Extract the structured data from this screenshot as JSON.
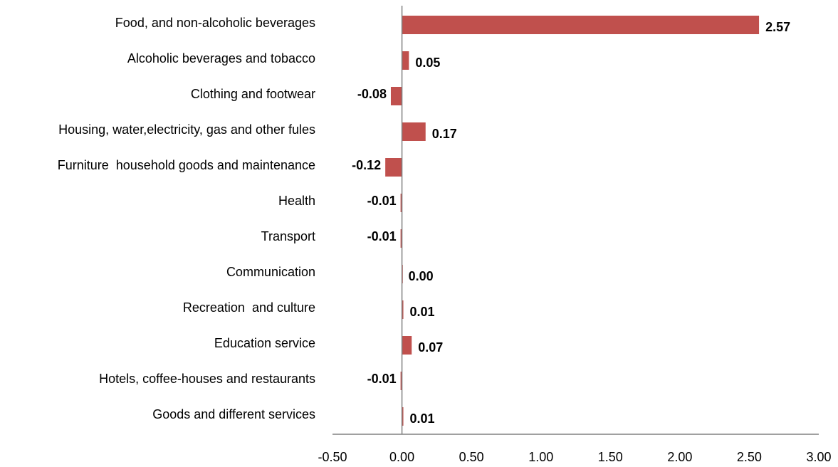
{
  "chart_data": {
    "type": "bar",
    "orientation": "horizontal",
    "title": "",
    "xlabel": "",
    "ylabel": "",
    "xlim": [
      -0.5,
      3.0
    ],
    "x_ticks": [
      "-0.50",
      "0.00",
      "0.50",
      "1.00",
      "1.50",
      "2.00",
      "2.50",
      "3.00"
    ],
    "grid": false,
    "bar_color": "#c0504d",
    "categories": [
      "Food, and non-alcoholic beverages",
      "Alcoholic beverages and tobacco",
      "Clothing and footwear",
      "Housing, water,electricity, gas and other fules",
      "Furniture  household goods and maintenance",
      "Health",
      "Transport",
      "Communication",
      "Recreation  and culture",
      "Education service",
      "Hotels, coffee-houses and restaurants",
      "Goods and different services"
    ],
    "values": [
      2.57,
      0.05,
      -0.08,
      0.17,
      -0.12,
      -0.01,
      -0.01,
      0.0,
      0.01,
      0.07,
      -0.01,
      0.01
    ],
    "data_labels": [
      "2.57",
      "0.05",
      "-0.08",
      "0.17",
      "-0.12",
      "-0.01",
      "-0.01",
      "0.00",
      "0.01",
      "0.07",
      "-0.01",
      "0.01"
    ]
  }
}
